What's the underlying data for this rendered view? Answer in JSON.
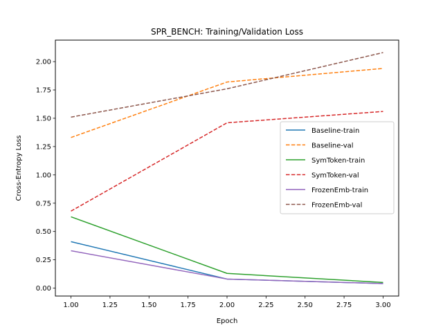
{
  "chart_data": {
    "type": "line",
    "title": "SPR_BENCH: Training/Validation Loss",
    "xlabel": "Epoch",
    "ylabel": "Cross-Entropy Loss",
    "xlim": [
      0.9,
      3.1
    ],
    "ylim": [
      -0.07,
      2.19
    ],
    "x_ticks": [
      "1.00",
      "1.25",
      "1.50",
      "1.75",
      "2.00",
      "2.25",
      "2.50",
      "2.75",
      "3.00"
    ],
    "y_ticks": [
      "0.00",
      "0.25",
      "0.50",
      "0.75",
      "1.00",
      "1.25",
      "1.50",
      "1.75",
      "2.00"
    ],
    "grid": false,
    "legend_position": "center-right",
    "x": [
      1,
      2,
      3
    ],
    "series": [
      {
        "name": "Baseline-train",
        "values": [
          0.41,
          0.08,
          0.04
        ],
        "color": "#1f77b4",
        "style": "solid"
      },
      {
        "name": "Baseline-val",
        "values": [
          1.33,
          1.82,
          1.94
        ],
        "color": "#ff7f0e",
        "style": "dashed"
      },
      {
        "name": "SymToken-train",
        "values": [
          0.63,
          0.13,
          0.05
        ],
        "color": "#2ca02c",
        "style": "solid"
      },
      {
        "name": "SymToken-val",
        "values": [
          0.68,
          1.46,
          1.56
        ],
        "color": "#d62728",
        "style": "dashed"
      },
      {
        "name": "FrozenEmb-train",
        "values": [
          0.33,
          0.08,
          0.04
        ],
        "color": "#9467bd",
        "style": "solid"
      },
      {
        "name": "FrozenEmb-val",
        "values": [
          1.51,
          1.76,
          2.08
        ],
        "color": "#8c564b",
        "style": "dashed"
      }
    ]
  }
}
